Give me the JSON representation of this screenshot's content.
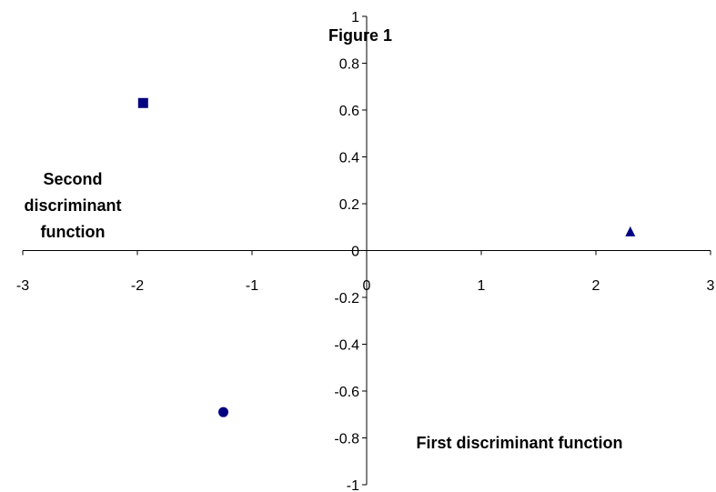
{
  "chart_data": {
    "type": "scatter",
    "title": "Figure 1",
    "xlabel": "First discriminant  function",
    "ylabel": [
      "Second",
      "discriminant",
      "function"
    ],
    "xlim": [
      -3,
      3
    ],
    "ylim": [
      -1,
      1
    ],
    "x_ticks": [
      -3,
      -2,
      -1,
      0,
      1,
      2,
      3
    ],
    "y_ticks": [
      1,
      0.8,
      0.6,
      0.4,
      0.2,
      0,
      -0.2,
      -0.4,
      -0.6,
      -0.8,
      -1
    ],
    "grid": false,
    "series": [
      {
        "marker": "square",
        "color": "#000080",
        "points": [
          [
            -1.95,
            0.63
          ]
        ]
      },
      {
        "marker": "circle",
        "color": "#000080",
        "points": [
          [
            -1.25,
            -0.69
          ]
        ]
      },
      {
        "marker": "triangle",
        "color": "#000080",
        "points": [
          [
            2.3,
            0.08
          ]
        ]
      }
    ]
  }
}
